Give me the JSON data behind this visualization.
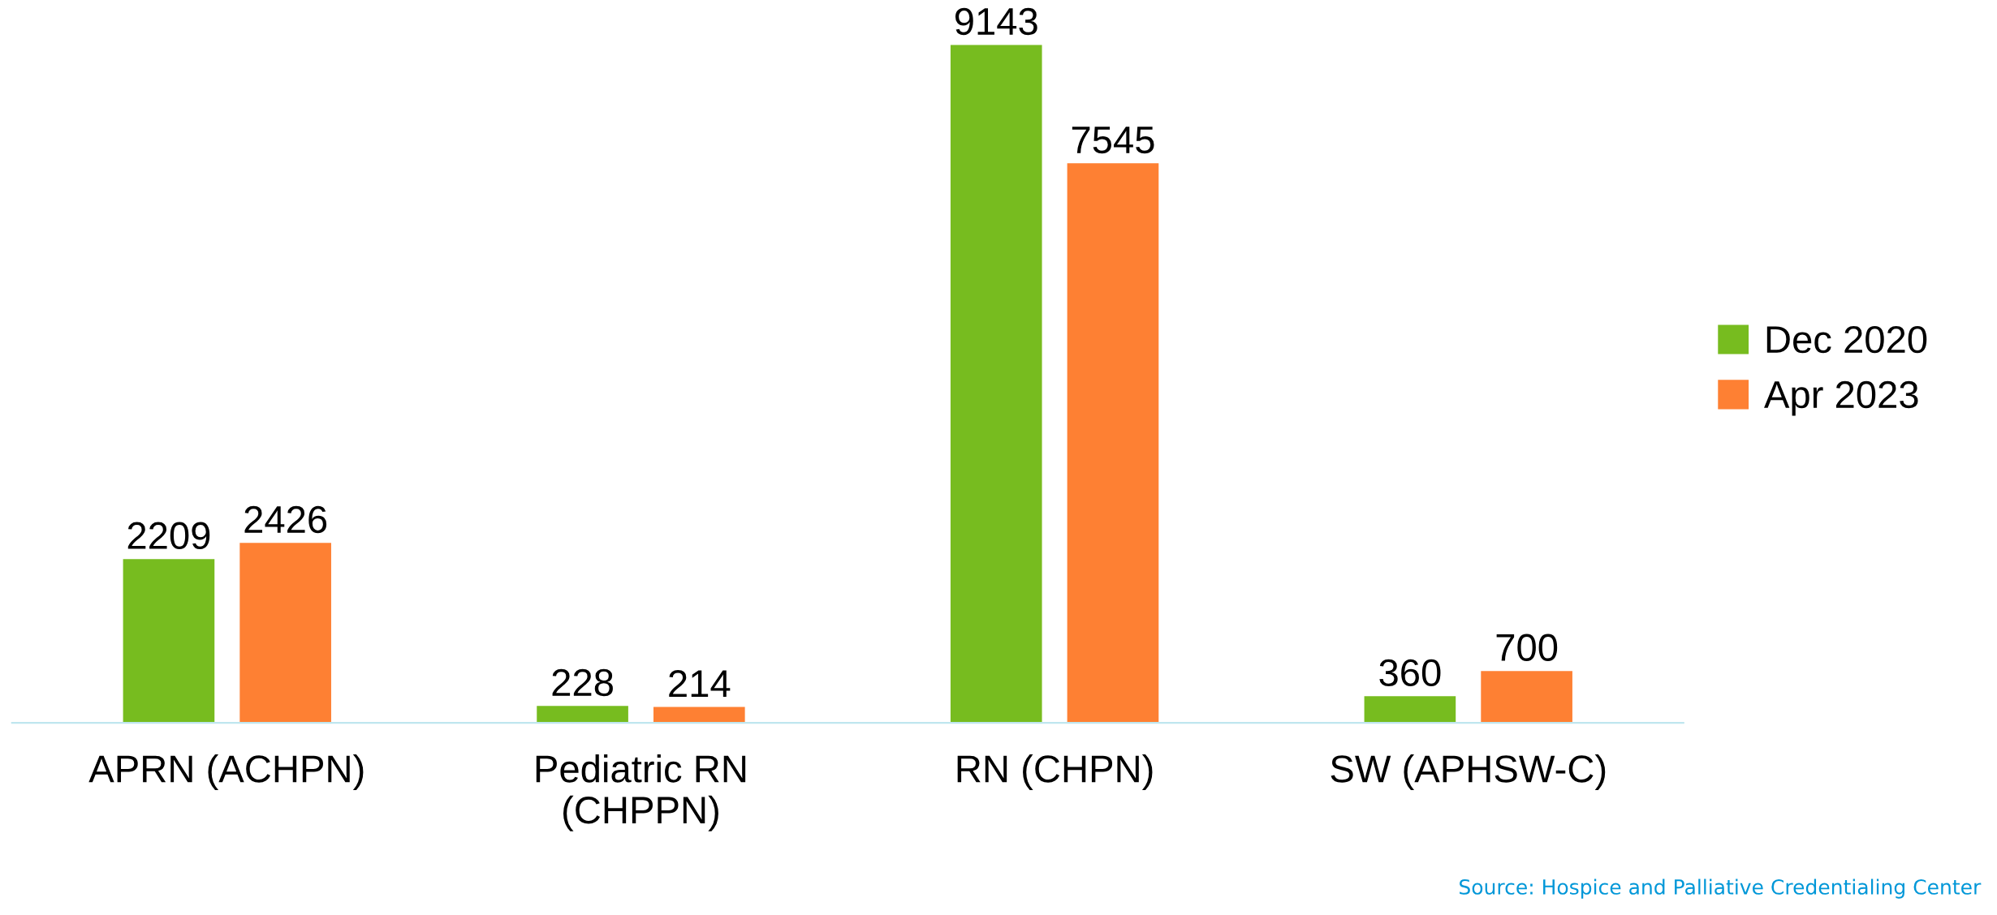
{
  "chart_data": {
    "type": "bar",
    "categories": [
      "APRN (ACHPN)",
      "Pediatric RN\n(CHPPN)",
      "RN (CHPN)",
      "SW (APHSW-C)"
    ],
    "series": [
      {
        "name": "Dec 2020",
        "color": "#77bc1f",
        "values": [
          2209,
          228,
          9143,
          360
        ]
      },
      {
        "name": "Apr 2023",
        "color": "#fe8033",
        "values": [
          2426,
          214,
          7545,
          700
        ]
      }
    ],
    "data_labels": true,
    "legend": "right",
    "grid": false,
    "annotations": [
      "Source: Hospice and Palliative Credentialing Center"
    ]
  }
}
